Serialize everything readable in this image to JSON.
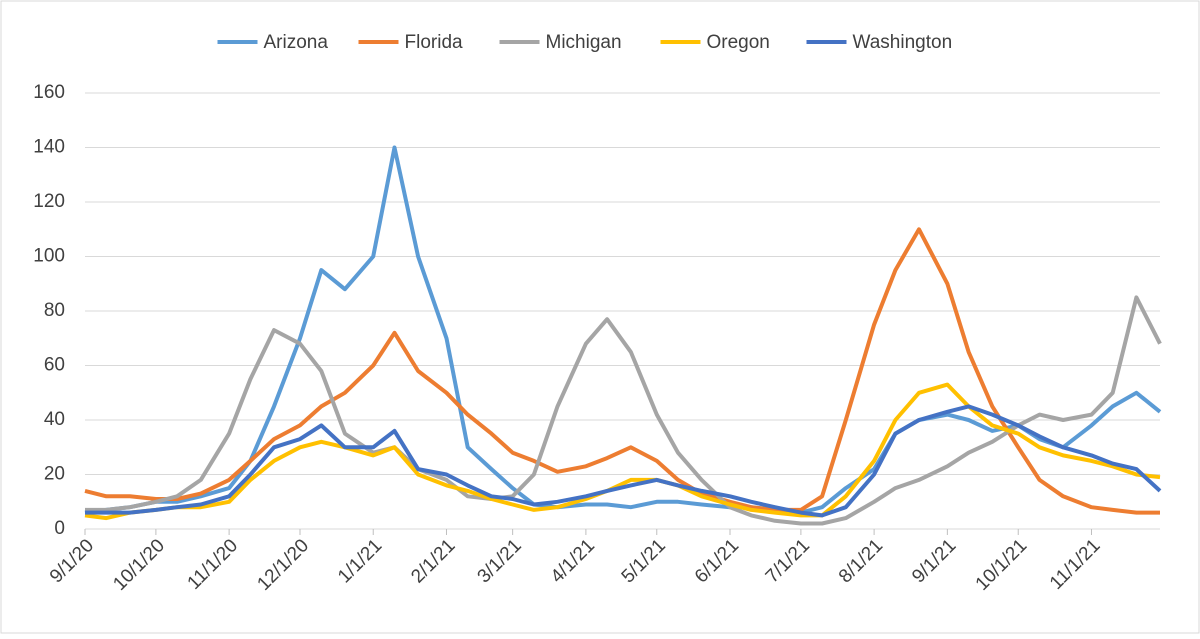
{
  "chart_data": {
    "type": "line",
    "x": [
      "9/1/20",
      "9/10/20",
      "9/20/20",
      "10/1/20",
      "10/10/20",
      "10/20/20",
      "11/1/20",
      "11/10/20",
      "11/20/20",
      "12/1/20",
      "12/10/20",
      "12/20/20",
      "1/1/21",
      "1/10/21",
      "1/20/21",
      "2/1/21",
      "2/10/21",
      "2/20/21",
      "3/1/21",
      "3/10/21",
      "3/20/21",
      "4/1/21",
      "4/10/21",
      "4/20/21",
      "5/1/21",
      "5/10/21",
      "5/20/21",
      "6/1/21",
      "6/10/21",
      "6/20/21",
      "7/1/21",
      "7/10/21",
      "7/20/21",
      "8/1/21",
      "8/10/21",
      "8/20/21",
      "9/1/21",
      "9/10/21",
      "9/20/21",
      "10/1/21",
      "10/10/21",
      "10/20/21",
      "11/1/21",
      "11/10/21",
      "11/20/21",
      "11/30/21"
    ],
    "series": [
      {
        "name": "Arizona",
        "color": "#5b9bd5",
        "values": [
          6,
          7,
          8,
          10,
          10,
          12,
          15,
          25,
          45,
          70,
          95,
          88,
          100,
          140,
          100,
          70,
          30,
          22,
          15,
          9,
          8,
          9,
          9,
          8,
          10,
          10,
          9,
          8,
          8,
          7,
          6,
          8,
          15,
          22,
          35,
          40,
          42,
          40,
          36,
          38,
          33,
          30,
          38,
          45,
          50,
          43
        ]
      },
      {
        "name": "Florida",
        "color": "#ed7d31",
        "values": [
          14,
          12,
          12,
          11,
          11,
          13,
          18,
          25,
          33,
          38,
          45,
          50,
          60,
          72,
          58,
          50,
          42,
          35,
          28,
          25,
          21,
          23,
          26,
          30,
          25,
          18,
          13,
          10,
          8,
          7,
          7,
          12,
          40,
          75,
          95,
          110,
          90,
          65,
          45,
          30,
          18,
          12,
          8,
          7,
          6,
          6
        ]
      },
      {
        "name": "Michigan",
        "color": "#a5a5a5",
        "values": [
          7,
          7,
          8,
          10,
          12,
          18,
          35,
          55,
          73,
          68,
          58,
          35,
          28,
          30,
          22,
          18,
          12,
          11,
          12,
          20,
          45,
          68,
          77,
          65,
          42,
          28,
          18,
          8,
          5,
          3,
          2,
          2,
          4,
          10,
          15,
          18,
          23,
          28,
          32,
          38,
          42,
          40,
          42,
          50,
          85,
          68
        ]
      },
      {
        "name": "Oregon",
        "color": "#ffc000",
        "values": [
          5,
          4,
          6,
          7,
          8,
          8,
          10,
          18,
          25,
          30,
          32,
          30,
          27,
          30,
          20,
          16,
          14,
          11,
          9,
          7,
          8,
          11,
          14,
          18,
          18,
          16,
          12,
          9,
          7,
          6,
          5,
          5,
          12,
          25,
          40,
          50,
          53,
          45,
          38,
          35,
          30,
          27,
          25,
          23,
          20,
          19
        ]
      },
      {
        "name": "Washington",
        "color": "#4472c4",
        "values": [
          6,
          6,
          6,
          7,
          8,
          9,
          12,
          20,
          30,
          33,
          38,
          30,
          30,
          36,
          22,
          20,
          16,
          12,
          11,
          9,
          10,
          12,
          14,
          16,
          18,
          16,
          14,
          12,
          10,
          8,
          6,
          5,
          8,
          20,
          35,
          40,
          43,
          45,
          42,
          38,
          34,
          30,
          27,
          24,
          22,
          14
        ]
      }
    ],
    "xlim": [
      "9/1/20",
      "11/30/21"
    ],
    "xticks": [
      "9/1/20",
      "10/1/20",
      "11/1/20",
      "12/1/20",
      "1/1/21",
      "2/1/21",
      "3/1/21",
      "4/1/21",
      "5/1/21",
      "6/1/21",
      "7/1/21",
      "8/1/21",
      "9/1/21",
      "10/1/21",
      "11/1/21"
    ],
    "ylim": [
      0,
      160
    ],
    "yticks": [
      0,
      20,
      40,
      60,
      80,
      100,
      120,
      140,
      160
    ],
    "grid": true,
    "legend": "top"
  }
}
